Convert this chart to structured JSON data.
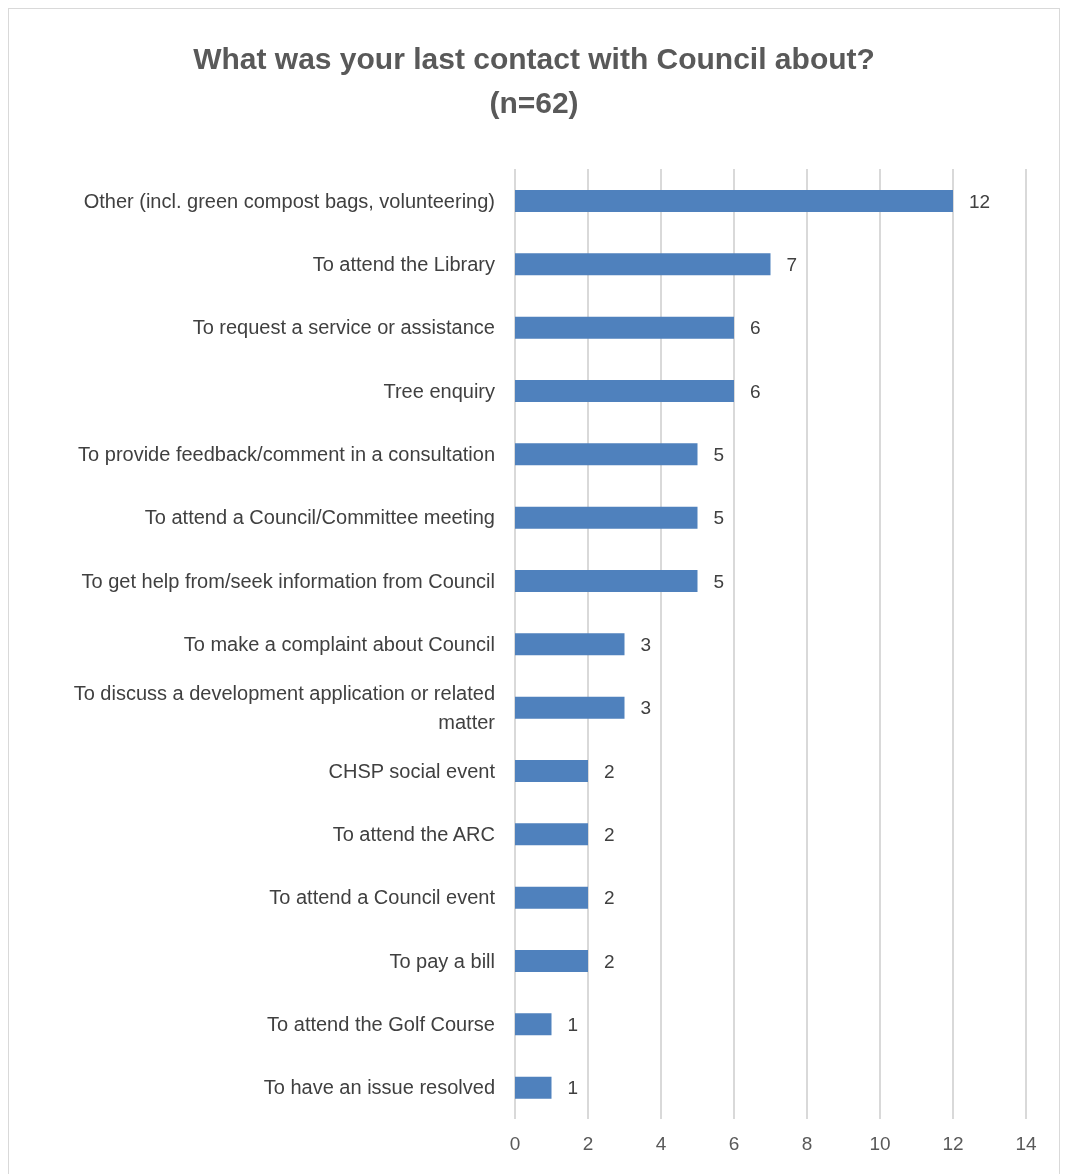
{
  "chart_data": {
    "type": "bar",
    "orientation": "horizontal",
    "title": "What was your last contact with Council about?\n(n=62)",
    "categories": [
      "Other (incl. green compost bags, volunteering)",
      "To attend the Library",
      "To request a service or assistance",
      "Tree enquiry",
      "To provide feedback/comment in a consultation",
      "To attend a Council/Committee meeting",
      "To get help from/seek information from Council",
      "To make a complaint about Council",
      "To discuss a development application or related matter",
      "CHSP social event",
      "To attend the ARC",
      "To attend a Council event",
      "To pay a bill",
      "To attend the Golf Course",
      "To have an issue resolved"
    ],
    "values": [
      12,
      7,
      6,
      6,
      5,
      5,
      5,
      3,
      3,
      2,
      2,
      2,
      2,
      1,
      1
    ],
    "color": "#4f81bd",
    "xlim": [
      0,
      14
    ],
    "xticks": [
      0,
      2,
      4,
      6,
      8,
      10,
      12,
      14
    ],
    "grid": "x",
    "data_labels": true
  }
}
